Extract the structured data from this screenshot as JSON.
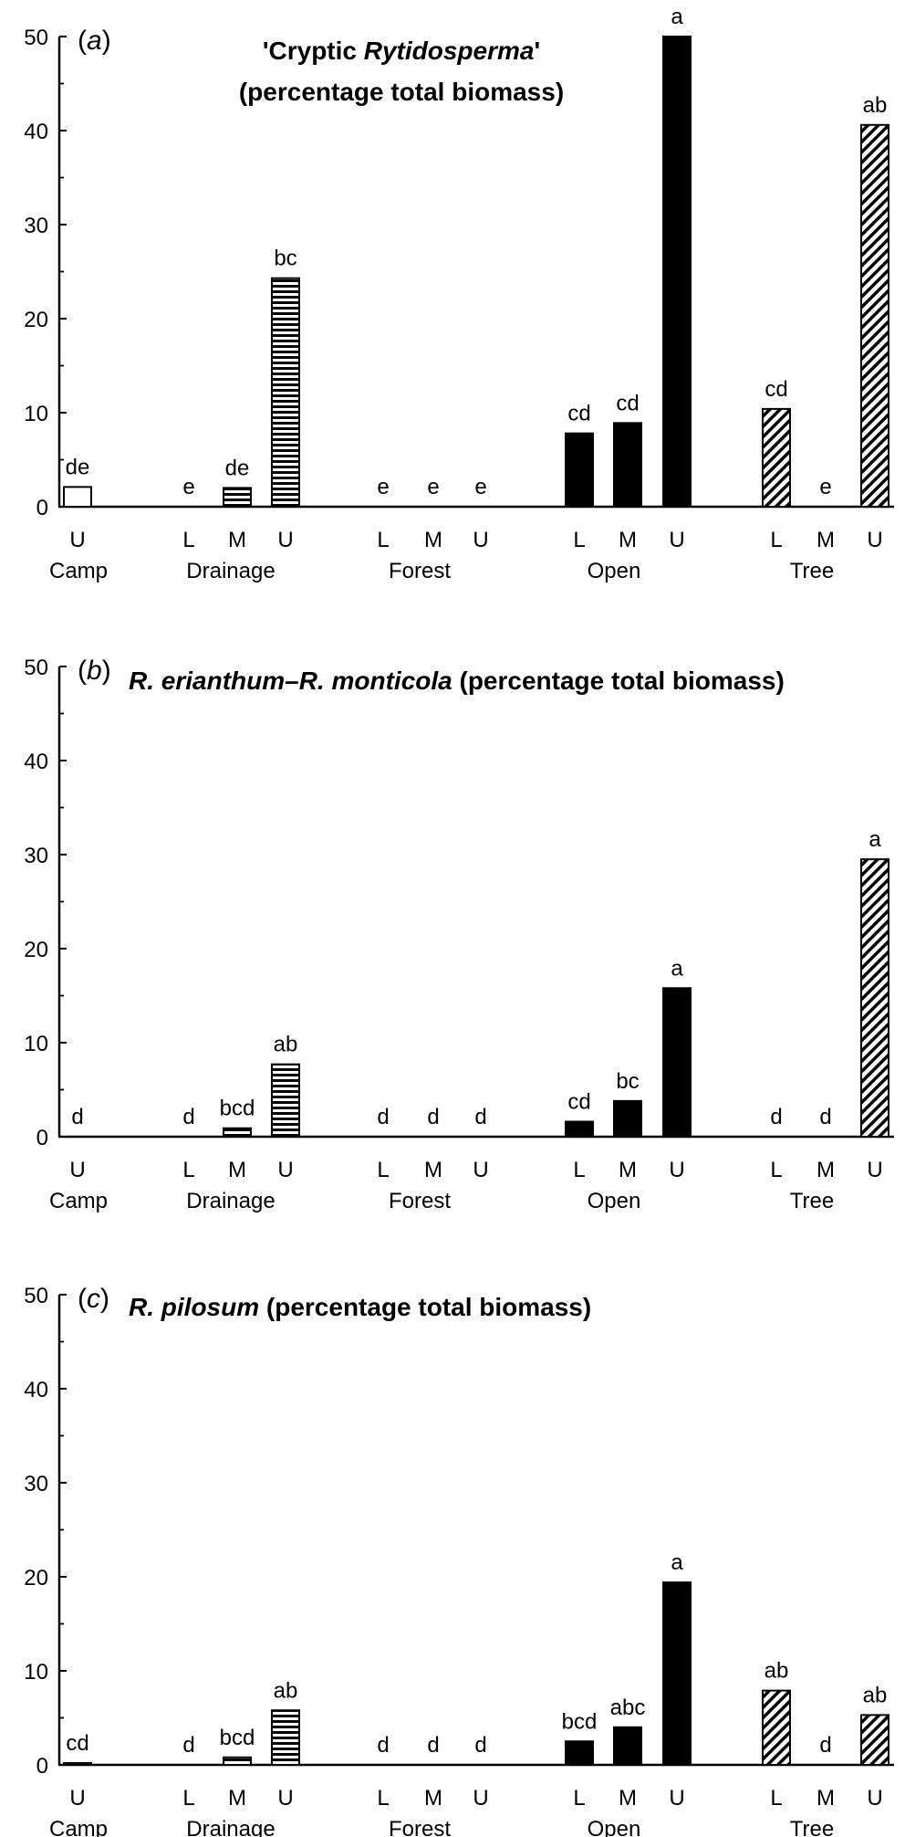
{
  "chart_data": [
    {
      "type": "bar",
      "panel_label": "a",
      "title_lines": [
        [
          {
            "text": "'Cryptic ",
            "italic": false
          },
          {
            "text": "Rytidosperma",
            "italic": true
          },
          {
            "text": "'",
            "italic": false
          }
        ],
        [
          {
            "text": "(percentage total biomass)",
            "italic": false
          }
        ]
      ],
      "ylim": [
        0,
        50
      ],
      "yticks": [
        0,
        10,
        20,
        30,
        40,
        50
      ],
      "groups": [
        {
          "name": "Camp",
          "pattern": "open",
          "bars": [
            {
              "label": "U",
              "value": 2.1,
              "sig": "de"
            }
          ]
        },
        {
          "name": "Drainage",
          "pattern": "hstripe",
          "bars": [
            {
              "label": "L",
              "value": 0,
              "sig": "e"
            },
            {
              "label": "M",
              "value": 2.0,
              "sig": "de"
            },
            {
              "label": "U",
              "value": 24.3,
              "sig": "bc"
            }
          ]
        },
        {
          "name": "Forest",
          "pattern": "solid",
          "bars": [
            {
              "label": "L",
              "value": 0,
              "sig": "e"
            },
            {
              "label": "M",
              "value": 0,
              "sig": "e"
            },
            {
              "label": "U",
              "value": 0,
              "sig": "e"
            }
          ]
        },
        {
          "name": "Open",
          "pattern": "solid",
          "bars": [
            {
              "label": "L",
              "value": 7.8,
              "sig": "cd"
            },
            {
              "label": "M",
              "value": 8.9,
              "sig": "cd"
            },
            {
              "label": "U",
              "value": 50.0,
              "sig": "a"
            }
          ]
        },
        {
          "name": "Tree",
          "pattern": "diag",
          "bars": [
            {
              "label": "L",
              "value": 10.4,
              "sig": "cd"
            },
            {
              "label": "M",
              "value": 0,
              "sig": "e"
            },
            {
              "label": "U",
              "value": 40.6,
              "sig": "ab"
            }
          ]
        }
      ]
    },
    {
      "type": "bar",
      "panel_label": "b",
      "title_lines": [
        [
          {
            "text": "R. erianthum–R. monticola",
            "italic": true
          },
          {
            "text": " (percentage total biomass)",
            "italic": false
          }
        ]
      ],
      "ylim": [
        0,
        50
      ],
      "yticks": [
        0,
        10,
        20,
        30,
        40,
        50
      ],
      "groups": [
        {
          "name": "Camp",
          "pattern": "open",
          "bars": [
            {
              "label": "U",
              "value": 0,
              "sig": "d"
            }
          ]
        },
        {
          "name": "Drainage",
          "pattern": "hstripe",
          "bars": [
            {
              "label": "L",
              "value": 0,
              "sig": "d"
            },
            {
              "label": "M",
              "value": 0.9,
              "sig": "bcd"
            },
            {
              "label": "U",
              "value": 7.7,
              "sig": "ab"
            }
          ]
        },
        {
          "name": "Forest",
          "pattern": "solid",
          "bars": [
            {
              "label": "L",
              "value": 0,
              "sig": "d"
            },
            {
              "label": "M",
              "value": 0,
              "sig": "d"
            },
            {
              "label": "U",
              "value": 0,
              "sig": "d"
            }
          ]
        },
        {
          "name": "Open",
          "pattern": "solid",
          "bars": [
            {
              "label": "L",
              "value": 1.6,
              "sig": "cd"
            },
            {
              "label": "M",
              "value": 3.8,
              "sig": "bc"
            },
            {
              "label": "U",
              "value": 15.8,
              "sig": "a"
            }
          ]
        },
        {
          "name": "Tree",
          "pattern": "diag",
          "bars": [
            {
              "label": "L",
              "value": 0,
              "sig": "d"
            },
            {
              "label": "M",
              "value": 0,
              "sig": "d"
            },
            {
              "label": "U",
              "value": 29.5,
              "sig": "a"
            }
          ]
        }
      ]
    },
    {
      "type": "bar",
      "panel_label": "c",
      "title_lines": [
        [
          {
            "text": "R. pilosum",
            "italic": true
          },
          {
            "text": " (percentage total biomass)",
            "italic": false
          }
        ]
      ],
      "ylim": [
        0,
        50
      ],
      "yticks": [
        0,
        10,
        20,
        30,
        40,
        50
      ],
      "groups": [
        {
          "name": "Camp",
          "pattern": "open",
          "bars": [
            {
              "label": "U",
              "value": 0.2,
              "sig": "cd"
            }
          ]
        },
        {
          "name": "Drainage",
          "pattern": "hstripe",
          "bars": [
            {
              "label": "L",
              "value": 0,
              "sig": "d"
            },
            {
              "label": "M",
              "value": 0.8,
              "sig": "bcd"
            },
            {
              "label": "U",
              "value": 5.8,
              "sig": "ab"
            }
          ]
        },
        {
          "name": "Forest",
          "pattern": "solid",
          "bars": [
            {
              "label": "L",
              "value": 0,
              "sig": "d"
            },
            {
              "label": "M",
              "value": 0,
              "sig": "d"
            },
            {
              "label": "U",
              "value": 0,
              "sig": "d"
            }
          ]
        },
        {
          "name": "Open",
          "pattern": "solid",
          "bars": [
            {
              "label": "L",
              "value": 2.5,
              "sig": "bcd"
            },
            {
              "label": "M",
              "value": 4.0,
              "sig": "abc"
            },
            {
              "label": "U",
              "value": 19.4,
              "sig": "a"
            }
          ]
        },
        {
          "name": "Tree",
          "pattern": "diag",
          "bars": [
            {
              "label": "L",
              "value": 7.9,
              "sig": "ab"
            },
            {
              "label": "M",
              "value": 0,
              "sig": "d"
            },
            {
              "label": "U",
              "value": 5.3,
              "sig": "ab"
            }
          ]
        }
      ]
    }
  ]
}
